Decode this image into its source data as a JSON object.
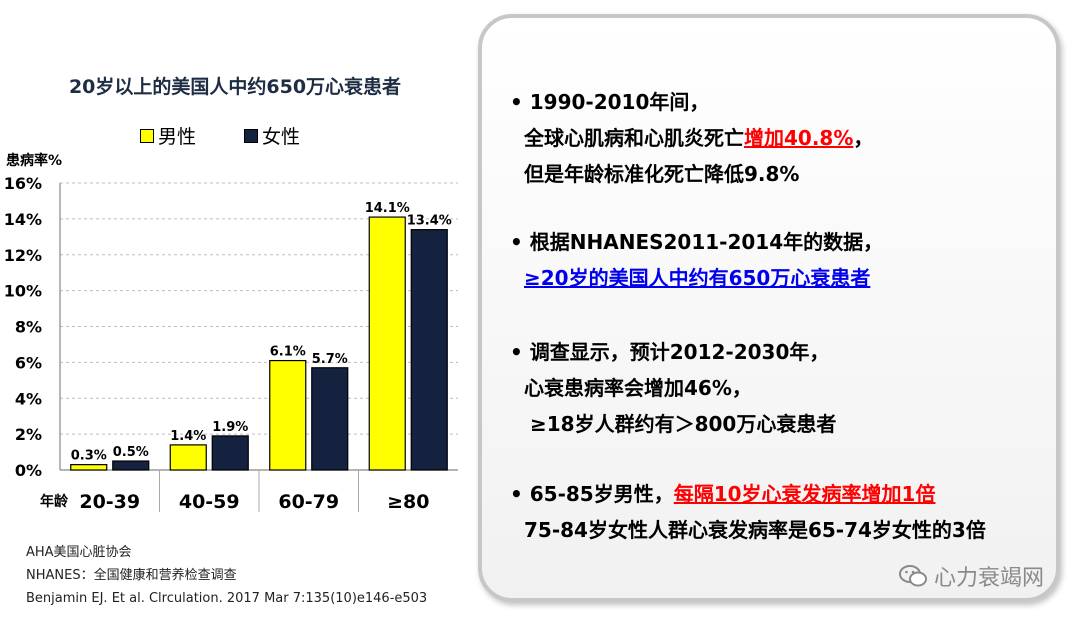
{
  "chart_data": {
    "type": "bar",
    "title": "20岁以上的美国人中约650万心衰患者",
    "ylabel": "患病率%",
    "xlabel": "年龄",
    "categories": [
      "20-39",
      "40-59",
      "60-79",
      "≥80"
    ],
    "series": [
      {
        "name": "男性",
        "color": "#ffff00",
        "values": [
          0.3,
          1.4,
          6.1,
          14.1
        ],
        "labels": [
          "0.3%",
          "1.4%",
          "6.1%",
          "14.1%"
        ]
      },
      {
        "name": "女性",
        "color": "#14223f",
        "values": [
          0.5,
          1.9,
          5.7,
          13.4
        ],
        "labels": [
          "0.5%",
          "1.9%",
          "5.7%",
          "13.4%"
        ]
      }
    ],
    "ylim": [
      0,
      16
    ],
    "yticks": [
      0,
      2,
      4,
      6,
      8,
      10,
      12,
      14,
      16
    ],
    "ytick_labels": [
      "0%",
      "2%",
      "4%",
      "6%",
      "8%",
      "10%",
      "12%",
      "14%",
      "16%"
    ],
    "grid": true,
    "legend_position": "top"
  },
  "sources": [
    "AHA美国心脏协会",
    "NHANES：全国健康和营养检查调查",
    "Benjamin EJ. Et al. Clrculation. 2017 Mar 7:135(10)e146-e503"
  ],
  "panel": {
    "b1": {
      "l1": "• 1990-2010年间，",
      "l2a": "全球心肌病和心肌炎死亡",
      "l2b": "增加40.8%",
      "l2c": "，",
      "l3": "但是年龄标准化死亡降低9.8%"
    },
    "b2": {
      "l1": "• 根据NHANES2011-2014年的数据，",
      "l2": "≥20岁的美国人中约有650万心衰患者"
    },
    "b3": {
      "l1": "• 调查显示，预计2012-2030年，",
      "l2": "心衰患病率会增加46%，",
      "l3": "≥18岁人群约有＞800万心衰患者"
    },
    "b4": {
      "l1a": "• 65-85岁男性，",
      "l1b": "每隔10岁心衰发病率增加1倍",
      "l2": "75-84岁女性人群心衰发病率是65-74岁女性的3倍"
    }
  },
  "watermark": "心力衰竭网",
  "colors": {
    "male": "#ffff00",
    "female": "#14223f",
    "highlight_red": "#ff0000",
    "highlight_blue": "#0000ee"
  }
}
